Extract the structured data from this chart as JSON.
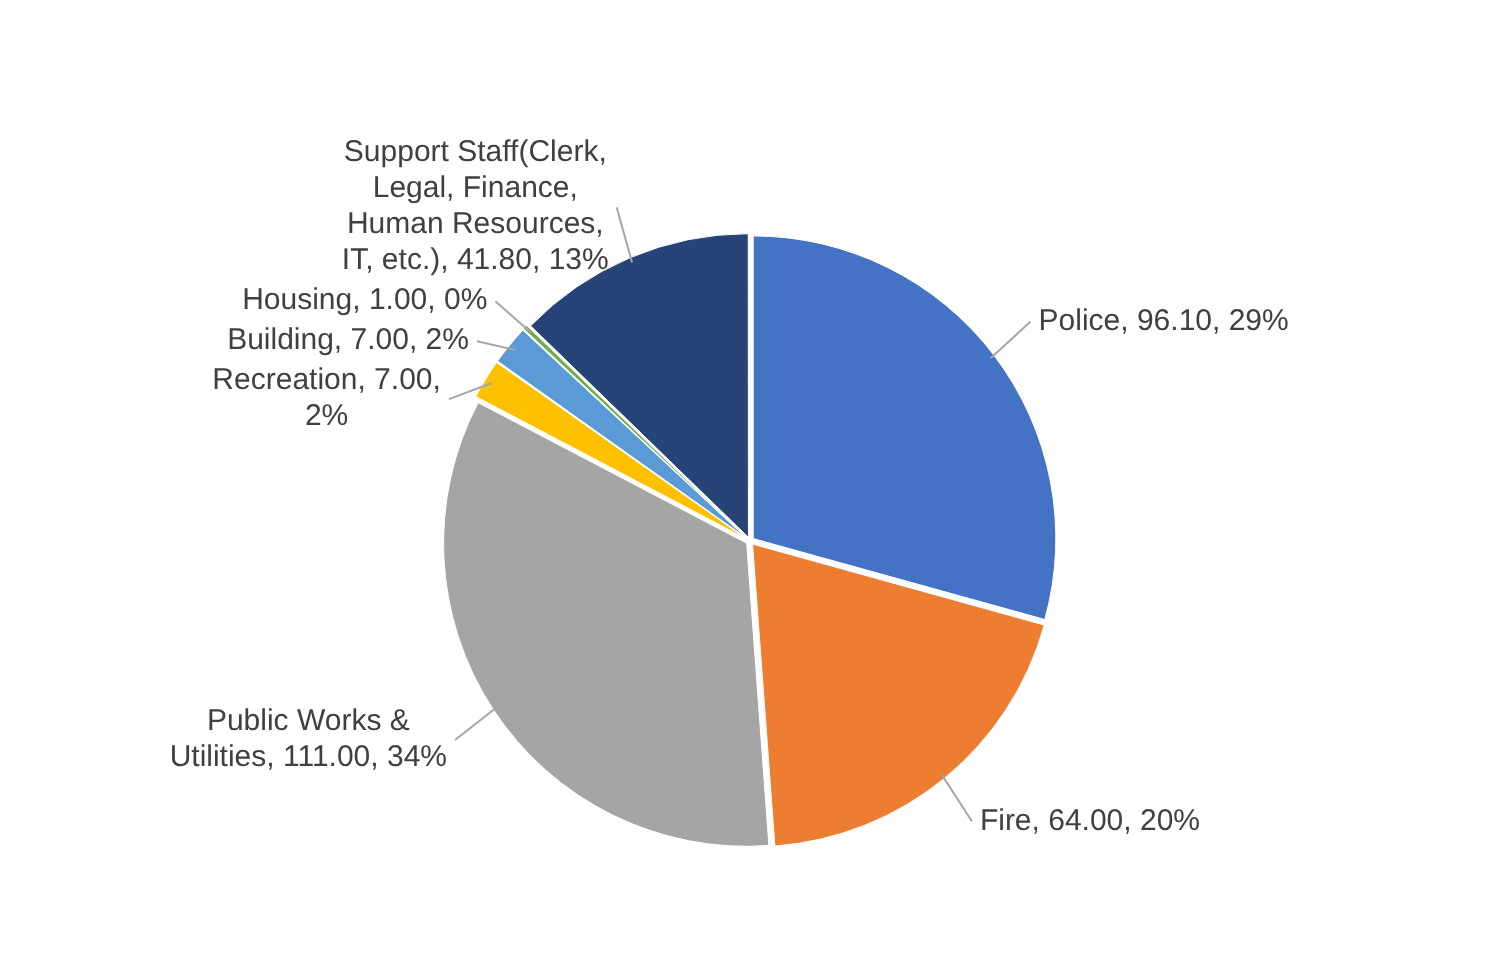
{
  "chart_data": {
    "type": "pie",
    "categories": [
      "Police",
      "Fire",
      "Public Works & Utilities",
      "Recreation",
      "Building",
      "Housing",
      "Support Staff(Clerk, Legal, Finance, Human Resources, IT, etc.)"
    ],
    "values": [
      96.1,
      64.0,
      111.0,
      7.0,
      7.0,
      1.0,
      41.8
    ],
    "colors": [
      "#4472c4",
      "#ed7d31",
      "#a5a5a5",
      "#ffc000",
      "#5b9bd5",
      "#70ad47",
      "#264478"
    ],
    "value_labels": [
      "96.10, 29%",
      "64.00, 20%",
      "111.00, 34%",
      "7.00, 2%",
      "7.00, 2%",
      "1.00, 0%",
      "41.80, 13%"
    ]
  }
}
